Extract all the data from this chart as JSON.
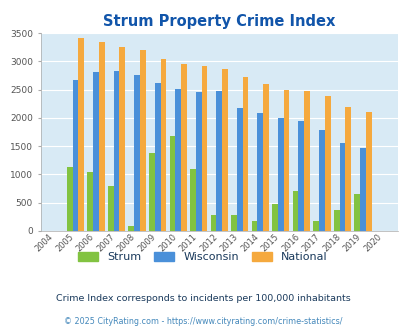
{
  "title": "Strum Property Crime Index",
  "years": [
    "2004",
    "2005",
    "2006",
    "2007",
    "2008",
    "2009",
    "2010",
    "2011",
    "2012",
    "2013",
    "2014",
    "2015",
    "2016",
    "2017",
    "2018",
    "2019",
    "2020"
  ],
  "strum": [
    0,
    1130,
    1040,
    790,
    80,
    1380,
    1680,
    1090,
    290,
    290,
    185,
    470,
    700,
    185,
    380,
    650,
    0
  ],
  "wisconsin": [
    0,
    2670,
    2810,
    2830,
    2750,
    2610,
    2510,
    2460,
    2470,
    2180,
    2090,
    2000,
    1950,
    1790,
    1560,
    1470,
    0
  ],
  "national": [
    0,
    3420,
    3340,
    3260,
    3200,
    3040,
    2950,
    2910,
    2860,
    2720,
    2600,
    2500,
    2480,
    2390,
    2200,
    2110,
    0
  ],
  "strum_color": "#82c341",
  "wisconsin_color": "#4a90d9",
  "national_color": "#f5a93e",
  "bg_color": "#d8eaf5",
  "title_color": "#1155aa",
  "ylim": [
    0,
    3500
  ],
  "yticks": [
    0,
    500,
    1000,
    1500,
    2000,
    2500,
    3000,
    3500
  ],
  "note": "Crime Index corresponds to incidents per 100,000 inhabitants",
  "footer": "© 2025 CityRating.com - https://www.cityrating.com/crime-statistics/",
  "note_color": "#1a3a5c",
  "footer_color": "#4488bb"
}
